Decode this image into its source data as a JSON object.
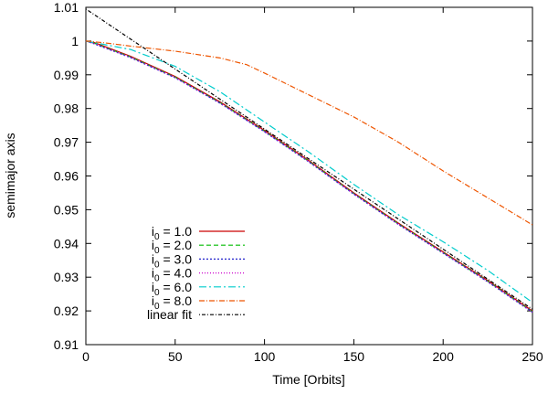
{
  "chart_data": {
    "type": "line",
    "title": "",
    "xlabel": "Time [Orbits]",
    "ylabel": "semimajor axis",
    "xlim": [
      0,
      250
    ],
    "ylim": [
      0.91,
      1.01
    ],
    "x_ticks": [
      "0",
      "50",
      "100",
      "150",
      "200",
      "250"
    ],
    "y_ticks": [
      "0.91",
      "0.92",
      "0.93",
      "0.94",
      "0.95",
      "0.96",
      "0.97",
      "0.98",
      "0.99",
      "1",
      "1.01"
    ],
    "grid": false,
    "legend_position": "bottom-left",
    "series": [
      {
        "name_main": "i",
        "name_sub": "0",
        "name_rest": " = 1.0",
        "color": "#cc0000",
        "dash": "",
        "x": [
          0,
          5,
          10,
          25,
          50,
          75,
          100,
          125,
          150,
          175,
          200,
          225,
          250
        ],
        "y": [
          1.0,
          0.9995,
          0.9985,
          0.9955,
          0.9895,
          0.982,
          0.9735,
          0.9645,
          0.955,
          0.946,
          0.9375,
          0.929,
          0.92
        ]
      },
      {
        "name_main": "i",
        "name_sub": "0",
        "name_rest": " = 2.0",
        "color": "#00bb00",
        "dash": "5,3",
        "x": [
          0,
          5,
          10,
          25,
          50,
          75,
          100,
          125,
          150,
          175,
          200,
          225,
          250
        ],
        "y": [
          1.0,
          0.9993,
          0.9983,
          0.9953,
          0.9893,
          0.9818,
          0.9733,
          0.9643,
          0.9548,
          0.9458,
          0.9373,
          0.9288,
          0.9198
        ]
      },
      {
        "name_main": "i",
        "name_sub": "0",
        "name_rest": " = 3.0",
        "color": "#2222cc",
        "dash": "2,2",
        "x": [
          0,
          5,
          10,
          25,
          50,
          75,
          100,
          125,
          150,
          175,
          200,
          225,
          250
        ],
        "y": [
          1.0,
          0.9991,
          0.9981,
          0.9951,
          0.9891,
          0.9816,
          0.9731,
          0.9641,
          0.9546,
          0.9456,
          0.9371,
          0.9286,
          0.9196
        ]
      },
      {
        "name_main": "i",
        "name_sub": "0",
        "name_rest": " = 4.0",
        "color": "#cc00cc",
        "dash": "1,2",
        "x": [
          0,
          5,
          10,
          25,
          50,
          75,
          100,
          125,
          150,
          175,
          200,
          225,
          250
        ],
        "y": [
          1.0,
          0.9992,
          0.9982,
          0.9952,
          0.9892,
          0.9817,
          0.9732,
          0.9642,
          0.9547,
          0.9457,
          0.9372,
          0.9287,
          0.9197
        ]
      },
      {
        "name_main": "i",
        "name_sub": "0",
        "name_rest": " = 6.0",
        "color": "#00cccc",
        "dash": "8,3,2,3",
        "x": [
          0,
          5,
          10,
          25,
          50,
          75,
          100,
          125,
          150,
          175,
          200,
          225,
          250
        ],
        "y": [
          1.0,
          0.9995,
          0.999,
          0.9975,
          0.9925,
          0.985,
          0.976,
          0.967,
          0.9575,
          0.9485,
          0.9405,
          0.932,
          0.9225
        ]
      },
      {
        "name_main": "i",
        "name_sub": "0",
        "name_rest": " = 8.0",
        "color": "#ee5500",
        "dash": "6,2,1,2",
        "x": [
          0,
          10,
          25,
          50,
          75,
          90,
          100,
          125,
          150,
          175,
          200,
          225,
          250
        ],
        "y": [
          1.0,
          0.9995,
          0.9985,
          0.997,
          0.995,
          0.993,
          0.9905,
          0.984,
          0.9775,
          0.97,
          0.9615,
          0.9535,
          0.9455
        ]
      },
      {
        "name_main": "linear fit",
        "name_sub": "",
        "name_rest": "",
        "color": "#000000",
        "dash": "1,2,4,2",
        "x": [
          0,
          250
        ],
        "y": [
          1.0095,
          0.9205
        ]
      }
    ]
  }
}
